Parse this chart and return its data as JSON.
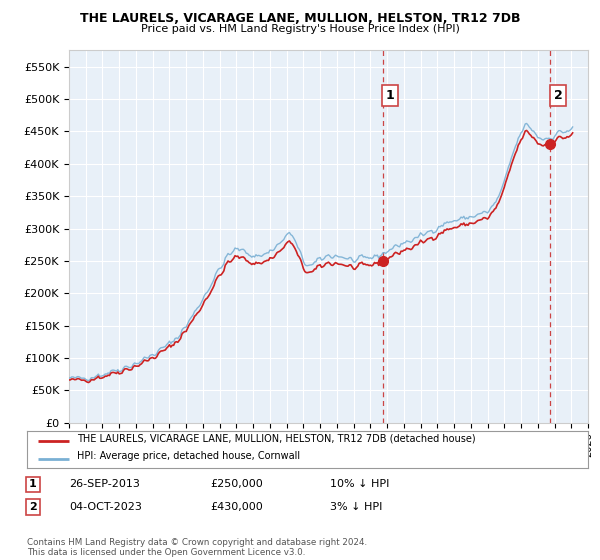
{
  "title": "THE LAURELS, VICARAGE LANE, MULLION, HELSTON, TR12 7DB",
  "subtitle": "Price paid vs. HM Land Registry's House Price Index (HPI)",
  "hpi_color": "#7ab0d4",
  "price_color": "#cc2222",
  "marker_color": "#cc2222",
  "vline_color": "#cc4444",
  "background_color": "#ffffff",
  "plot_bg_color": "#e8f0f8",
  "grid_color": "#ffffff",
  "ylim": [
    0,
    575000
  ],
  "yticks": [
    0,
    50000,
    100000,
    150000,
    200000,
    250000,
    300000,
    350000,
    400000,
    450000,
    500000,
    550000
  ],
  "sale1_date_label": "26-SEP-2013",
  "sale1_price": 250000,
  "sale1_pct": "10% ↓ HPI",
  "sale1_year": 2013.73,
  "sale2_date_label": "04-OCT-2023",
  "sale2_price": 430000,
  "sale2_year": 2023.75,
  "sale2_pct": "3% ↓ HPI",
  "legend_line1": "THE LAURELS, VICARAGE LANE, MULLION, HELSTON, TR12 7DB (detached house)",
  "legend_line2": "HPI: Average price, detached house, Cornwall",
  "footer": "Contains HM Land Registry data © Crown copyright and database right 2024.\nThis data is licensed under the Open Government Licence v3.0.",
  "xmin": 1995.0,
  "xmax": 2026.0
}
